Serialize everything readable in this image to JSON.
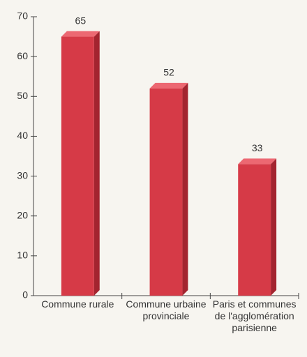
{
  "chart_data": {
    "type": "bar",
    "categories": [
      "Commune rurale",
      "Commune urbaine provinciale",
      "Paris et communes de l'agglomération parisienne"
    ],
    "values": [
      65,
      52,
      33
    ],
    "color": "#d63a47",
    "ylim": [
      0,
      70
    ],
    "yticks": [
      0,
      10,
      20,
      30,
      40,
      50,
      60,
      70
    ]
  }
}
